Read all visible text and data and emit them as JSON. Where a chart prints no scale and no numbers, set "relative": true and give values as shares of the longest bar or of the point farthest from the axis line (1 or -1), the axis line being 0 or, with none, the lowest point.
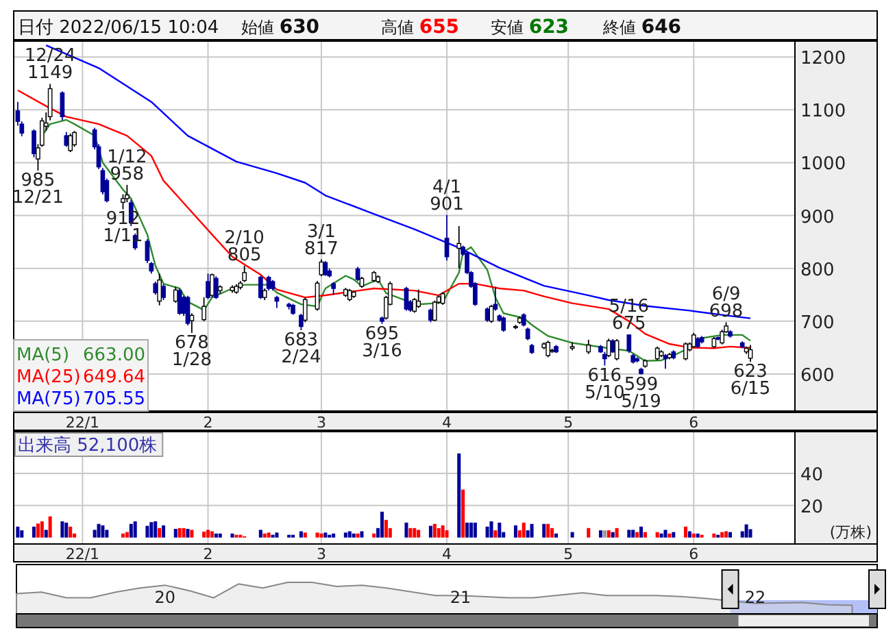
{
  "chart_data": [
    {
      "type": "candlestick",
      "title": "日付 2022/06/15 10:04",
      "x": [
        "2021-12-16",
        "2021-12-17",
        "2021-12-20",
        "2021-12-21",
        "2021-12-22",
        "2021-12-23",
        "2021-12-24",
        "2021-12-27",
        "2021-12-28",
        "2021-12-29",
        "2021-12-30",
        "2022-01-04",
        "2022-01-05",
        "2022-01-06",
        "2022-01-07",
        "2022-01-11",
        "2022-01-12",
        "2022-01-13",
        "2022-01-14",
        "2022-01-17",
        "2022-01-18",
        "2022-01-19",
        "2022-01-20",
        "2022-01-21",
        "2022-01-24",
        "2022-01-25",
        "2022-01-26",
        "2022-01-27",
        "2022-01-28",
        "2022-01-31",
        "2022-02-01",
        "2022-02-02",
        "2022-02-03",
        "2022-02-04",
        "2022-02-07",
        "2022-02-08",
        "2022-02-09",
        "2022-02-10",
        "2022-02-14",
        "2022-02-15",
        "2022-02-16",
        "2022-02-17",
        "2022-02-18",
        "2022-02-21",
        "2022-02-22",
        "2022-02-24",
        "2022-02-25",
        "2022-02-28",
        "2022-03-01",
        "2022-03-02",
        "2022-03-03",
        "2022-03-04",
        "2022-03-07",
        "2022-03-08",
        "2022-03-09",
        "2022-03-10",
        "2022-03-11",
        "2022-03-14",
        "2022-03-15",
        "2022-03-16",
        "2022-03-17",
        "2022-03-18",
        "2022-03-22",
        "2022-03-23",
        "2022-03-24",
        "2022-03-25",
        "2022-03-28",
        "2022-03-29",
        "2022-03-30",
        "2022-03-31",
        "2022-04-01",
        "2022-04-04",
        "2022-04-05",
        "2022-04-06",
        "2022-04-07",
        "2022-04-08",
        "2022-04-11",
        "2022-04-12",
        "2022-04-13",
        "2022-04-14",
        "2022-04-15",
        "2022-04-18",
        "2022-04-19",
        "2022-04-20",
        "2022-04-21",
        "2022-04-22",
        "2022-04-25",
        "2022-04-26",
        "2022-04-27",
        "2022-04-28",
        "2022-05-02",
        "2022-05-06",
        "2022-05-09",
        "2022-05-10",
        "2022-05-11",
        "2022-05-12",
        "2022-05-13",
        "2022-05-16",
        "2022-05-17",
        "2022-05-18",
        "2022-05-19",
        "2022-05-20",
        "2022-05-23",
        "2022-05-24",
        "2022-05-25",
        "2022-05-26",
        "2022-05-27",
        "2022-05-30",
        "2022-05-31",
        "2022-06-01",
        "2022-06-02",
        "2022-06-03",
        "2022-06-06",
        "2022-06-07",
        "2022-06-08",
        "2022-06-09",
        "2022-06-10",
        "2022-06-13",
        "2022-06-14",
        "2022-06-15"
      ],
      "ohlc": [
        [
          1098,
          1115,
          1070,
          1078
        ],
        [
          1073,
          1078,
          1050,
          1056
        ],
        [
          1060,
          1063,
          1010,
          1017
        ],
        [
          1007,
          1035,
          985,
          1028
        ],
        [
          1033,
          1085,
          1030,
          1079
        ],
        [
          1069,
          1095,
          1060,
          1075
        ],
        [
          1087,
          1149,
          1080,
          1140
        ],
        [
          1132,
          1135,
          1080,
          1087
        ],
        [
          1051,
          1058,
          1030,
          1033
        ],
        [
          1023,
          1055,
          1020,
          1051
        ],
        [
          1034,
          1060,
          1030,
          1057
        ],
        [
          1062,
          1066,
          1025,
          1030
        ],
        [
          1030,
          1035,
          988,
          992
        ],
        [
          985,
          990,
          940,
          945
        ],
        [
          966,
          970,
          925,
          928
        ],
        [
          925,
          940,
          912,
          932
        ],
        [
          932,
          958,
          925,
          939
        ],
        [
          924,
          930,
          880,
          886
        ],
        [
          862,
          866,
          835,
          839
        ],
        [
          851,
          855,
          810,
          815
        ],
        [
          809,
          812,
          790,
          795
        ],
        [
          771,
          775,
          750,
          754
        ],
        [
          738,
          790,
          730,
          778
        ],
        [
          766,
          770,
          740,
          745
        ],
        [
          738,
          765,
          735,
          759
        ],
        [
          758,
          762,
          712,
          715
        ],
        [
          745,
          748,
          710,
          715
        ],
        [
          745,
          748,
          692,
          696
        ],
        [
          701,
          715,
          678,
          711
        ],
        [
          703,
          745,
          700,
          728
        ],
        [
          775,
          790,
          742,
          745
        ],
        [
          749,
          790,
          745,
          788
        ],
        [
          781,
          785,
          742,
          745
        ],
        [
          758,
          768,
          752,
          765
        ],
        [
          758,
          768,
          754,
          764
        ],
        [
          755,
          770,
          752,
          766
        ],
        [
          764,
          776,
          760,
          772
        ],
        [
          777,
          805,
          774,
          792
        ],
        [
          783,
          786,
          742,
          745
        ],
        [
          745,
          762,
          740,
          758
        ],
        [
          783,
          786,
          758,
          762
        ],
        [
          775,
          778,
          758,
          762
        ],
        [
          745,
          748,
          725,
          738
        ],
        [
          732,
          735,
          722,
          728
        ],
        [
          730,
          733,
          712,
          715
        ],
        [
          711,
          714,
          683,
          690
        ],
        [
          702,
          745,
          698,
          741
        ],
        [
          723,
          776,
          720,
          772
        ],
        [
          788,
          817,
          785,
          812
        ],
        [
          811,
          814,
          786,
          788
        ],
        [
          795,
          800,
          783,
          786
        ],
        [
          771,
          774,
          750,
          762
        ],
        [
          749,
          763,
          746,
          760
        ],
        [
          741,
          761,
          738,
          758
        ],
        [
          747,
          758,
          744,
          755
        ],
        [
          799,
          803,
          776,
          779
        ],
        [
          766,
          784,
          763,
          781
        ],
        [
          777,
          795,
          774,
          792
        ],
        [
          775,
          787,
          772,
          784
        ],
        [
          706,
          709,
          695,
          700
        ],
        [
          706,
          748,
          703,
          745
        ],
        [
          732,
          775,
          730,
          771
        ],
        [
          762,
          765,
          720,
          723
        ],
        [
          736,
          740,
          718,
          721
        ],
        [
          719,
          744,
          716,
          741
        ],
        [
          728,
          760,
          725,
          738
        ],
        [
          721,
          724,
          698,
          702
        ],
        [
          702,
          739,
          700,
          736
        ],
        [
          736,
          749,
          733,
          746
        ],
        [
          734,
          755,
          731,
          752
        ],
        [
          857,
          901,
          815,
          822
        ],
        [
          838,
          880,
          800,
          847
        ],
        [
          840,
          843,
          824,
          827
        ],
        [
          829,
          832,
          789,
          792
        ],
        [
          792,
          795,
          763,
          766
        ],
        [
          771,
          774,
          729,
          732
        ],
        [
          723,
          726,
          699,
          702
        ],
        [
          700,
          731,
          697,
          728
        ],
        [
          732,
          765,
          720,
          723
        ],
        [
          710,
          713,
          699,
          702
        ],
        [
          706,
          709,
          680,
          683
        ],
        [
          688,
          693,
          685,
          690
        ],
        [
          698,
          709,
          695,
          706
        ],
        [
          712,
          715,
          690,
          693
        ],
        [
          685,
          688,
          664,
          667
        ],
        [
          654,
          657,
          638,
          641
        ],
        [
          650,
          660,
          647,
          657
        ],
        [
          635,
          663,
          632,
          660
        ],
        [
          643,
          648,
          640,
          645
        ],
        [
          652,
          655,
          640,
          642
        ],
        [
          649,
          660,
          645,
          652
        ],
        [
          642,
          665,
          638,
          655
        ],
        [
          652,
          655,
          640,
          642
        ],
        [
          637,
          642,
          616,
          629
        ],
        [
          635,
          667,
          632,
          663
        ],
        [
          663,
          666,
          640,
          642
        ],
        [
          629,
          666,
          626,
          663
        ],
        [
          674,
          675,
          640,
          644
        ],
        [
          635,
          638,
          620,
          623
        ],
        [
          629,
          632,
          622,
          625
        ],
        [
          609,
          612,
          599,
          601
        ],
        [
          615,
          628,
          612,
          625
        ],
        [
          629,
          652,
          626,
          649
        ],
        [
          635,
          645,
          632,
          642
        ],
        [
          635,
          638,
          610,
          629
        ],
        [
          631,
          640,
          628,
          637
        ],
        [
          642,
          645,
          628,
          631
        ],
        [
          629,
          660,
          626,
          657
        ],
        [
          646,
          660,
          643,
          657
        ],
        [
          652,
          678,
          650,
          674
        ],
        [
          667,
          670,
          649,
          652
        ],
        [
          669,
          672,
          658,
          661
        ],
        [
          652,
          670,
          649,
          667
        ],
        [
          669,
          671,
          664,
          666
        ],
        [
          659,
          684,
          656,
          680
        ],
        [
          680,
          698,
          678,
          691
        ],
        [
          680,
          683,
          669,
          672
        ],
        [
          659,
          662,
          649,
          652
        ],
        [
          642,
          652,
          638,
          649
        ],
        [
          630,
          655,
          623,
          646
        ]
      ],
      "series": [
        {
          "type": "line",
          "name": "MA(5)",
          "color": "#2e8b2e",
          "x": [
            "2021-12-22",
            "2021-12-24",
            "2021-12-28",
            "2021-12-30",
            "2022-01-04",
            "2022-01-06",
            "2022-01-11",
            "2022-01-13",
            "2022-01-17",
            "2022-01-19",
            "2022-01-21",
            "2022-01-25",
            "2022-01-27",
            "2022-01-31",
            "2022-02-02",
            "2022-02-07",
            "2022-02-10",
            "2022-02-16",
            "2022-02-18",
            "2022-02-24",
            "2022-02-28",
            "2022-03-02",
            "2022-03-07",
            "2022-03-09",
            "2022-03-11",
            "2022-03-15",
            "2022-03-17",
            "2022-03-23",
            "2022-03-25",
            "2022-03-29",
            "2022-03-31",
            "2022-04-04",
            "2022-04-05",
            "2022-04-07",
            "2022-04-11",
            "2022-04-13",
            "2022-04-15",
            "2022-04-20",
            "2022-04-22",
            "2022-04-26",
            "2022-05-02",
            "2022-05-11",
            "2022-05-16",
            "2022-05-20",
            "2022-05-24",
            "2022-05-27",
            "2022-05-31",
            "2022-06-03",
            "2022-06-08",
            "2022-06-13",
            "2022-06-15"
          ],
          "values": [
            1051,
            1073,
            1081,
            1073,
            1051,
            1000,
            949,
            932,
            864,
            805,
            771,
            762,
            737,
            721,
            745,
            762,
            769,
            769,
            754,
            732,
            728,
            762,
            786,
            779,
            766,
            779,
            753,
            736,
            732,
            734,
            736,
            792,
            831,
            840,
            797,
            745,
            715,
            706,
            693,
            672,
            659,
            649,
            644,
            625,
            626,
            635,
            650,
            668,
            674,
            674,
            663.0
          ]
        },
        {
          "type": "line",
          "name": "MA(25)",
          "color": "#ff0000",
          "x": [
            "2021-12-16",
            "2021-12-23",
            "2021-12-28",
            "2022-01-05",
            "2022-01-12",
            "2022-01-18",
            "2022-01-21",
            "2022-01-27",
            "2022-02-02",
            "2022-02-07",
            "2022-02-14",
            "2022-02-18",
            "2022-02-25",
            "2022-03-02",
            "2022-03-14",
            "2022-03-24",
            "2022-03-30",
            "2022-04-04",
            "2022-04-08",
            "2022-04-14",
            "2022-04-20",
            "2022-04-25",
            "2022-05-02",
            "2022-05-11",
            "2022-05-16",
            "2022-05-20",
            "2022-05-26",
            "2022-05-31",
            "2022-06-06",
            "2022-06-10",
            "2022-06-15"
          ],
          "values": [
            1137,
            1107,
            1087,
            1073,
            1051,
            1013,
            966,
            915,
            864,
            822,
            788,
            760,
            745,
            749,
            762,
            758,
            749,
            771,
            771,
            762,
            758,
            747,
            734,
            723,
            700,
            676,
            657,
            650,
            649,
            652,
            649.64
          ]
        },
        {
          "type": "line",
          "name": "MA(75)",
          "color": "#0000ff",
          "x": [
            "2021-12-23",
            "2022-01-05",
            "2022-01-18",
            "2022-01-27",
            "2022-02-08",
            "2022-02-18",
            "2022-02-25",
            "2022-03-02",
            "2022-03-14",
            "2022-03-24",
            "2022-04-04",
            "2022-04-14",
            "2022-04-25",
            "2022-05-06",
            "2022-05-11",
            "2022-05-20",
            "2022-05-31",
            "2022-06-10",
            "2022-06-15"
          ],
          "values": [
            1222,
            1179,
            1115,
            1051,
            1002,
            980,
            962,
            938,
            903,
            874,
            839,
            801,
            767,
            749,
            740,
            729,
            720,
            710,
            705.55
          ]
        }
      ],
      "ylim": [
        530,
        1230
      ],
      "yticks": [
        600,
        700,
        800,
        900,
        1000,
        1100,
        1200
      ],
      "xlim": [
        "2021-12-15",
        "2022-06-26"
      ],
      "xticks": [
        {
          "value": "2022-01",
          "label": "22/1"
        },
        {
          "value": "2022-02",
          "label": "2"
        },
        {
          "value": "2022-03",
          "label": "3"
        },
        {
          "value": "2022-04",
          "label": "4"
        },
        {
          "value": "2022-05",
          "label": "5"
        },
        {
          "value": "2022-06",
          "label": "6"
        }
      ],
      "grid": true,
      "legend": "bottom left",
      "annotations": [
        "始値 **630**",
        "高値 **655**",
        "安値 **623**",
        "終値 **646**",
        "663.00",
        "649.64",
        "705.55",
        {
          "text": "12/24",
          "x": "2021-12-24",
          "y": 1149
        },
        {
          "text": "1149",
          "x": "2021-12-24",
          "y": 1149
        },
        {
          "text": "985",
          "x": "2021-12-21",
          "y": 985
        },
        {
          "text": "12/21",
          "x": "2021-12-21",
          "y": 985
        },
        {
          "text": "1/12",
          "x": "2022-01-12",
          "y": 958
        },
        {
          "text": "958",
          "x": "2022-01-12",
          "y": 958
        },
        {
          "text": "912",
          "x": "2022-01-11",
          "y": 912
        },
        {
          "text": "1/11",
          "x": "2022-01-11",
          "y": 912
        },
        {
          "text": "678",
          "x": "2022-01-28",
          "y": 678
        },
        {
          "text": "1/28",
          "x": "2022-01-28",
          "y": 678
        },
        {
          "text": "2/10",
          "x": "2022-02-10",
          "y": 805
        },
        {
          "text": "805",
          "x": "2022-02-10",
          "y": 805
        },
        {
          "text": "683",
          "x": "2022-02-24",
          "y": 683
        },
        {
          "text": "2/24",
          "x": "2022-02-24",
          "y": 683
        },
        {
          "text": "3/1",
          "x": "2022-03-01",
          "y": 817
        },
        {
          "text": "817",
          "x": "2022-03-01",
          "y": 817
        },
        {
          "text": "695",
          "x": "2022-03-16",
          "y": 695
        },
        {
          "text": "3/16",
          "x": "2022-03-16",
          "y": 695
        },
        {
          "text": "4/1",
          "x": "2022-04-01",
          "y": 901
        },
        {
          "text": "901",
          "x": "2022-04-01",
          "y": 901
        },
        {
          "text": "616",
          "x": "2022-05-10",
          "y": 616
        },
        {
          "text": "5/10",
          "x": "2022-05-10",
          "y": 616
        },
        {
          "text": "5/16",
          "x": "2022-05-16",
          "y": 675
        },
        {
          "text": "675",
          "x": "2022-05-16",
          "y": 675
        },
        {
          "text": "599",
          "x": "2022-05-19",
          "y": 599
        },
        {
          "text": "5/19",
          "x": "2022-05-19",
          "y": 599
        },
        {
          "text": "6/9",
          "x": "2022-06-09",
          "y": 698
        },
        {
          "text": "698",
          "x": "2022-06-09",
          "y": 698
        },
        {
          "text": "623",
          "x": "2022-06-15",
          "y": 623
        },
        {
          "text": "6/15",
          "x": "2022-06-15",
          "y": 623
        }
      ]
    },
    {
      "type": "bar",
      "title": "出来高 52,100株",
      "ylabel": "(万株)",
      "x": [
        "2021-12-16",
        "2021-12-17",
        "2021-12-20",
        "2021-12-21",
        "2021-12-22",
        "2021-12-23",
        "2021-12-24",
        "2021-12-27",
        "2021-12-28",
        "2021-12-29",
        "2021-12-30",
        "2022-01-04",
        "2022-01-05",
        "2022-01-06",
        "2022-01-07",
        "2022-01-11",
        "2022-01-12",
        "2022-01-13",
        "2022-01-14",
        "2022-01-17",
        "2022-01-18",
        "2022-01-19",
        "2022-01-20",
        "2022-01-21",
        "2022-01-24",
        "2022-01-25",
        "2022-01-26",
        "2022-01-27",
        "2022-01-28",
        "2022-01-31",
        "2022-02-01",
        "2022-02-02",
        "2022-02-03",
        "2022-02-04",
        "2022-02-07",
        "2022-02-08",
        "2022-02-09",
        "2022-02-10",
        "2022-02-14",
        "2022-02-15",
        "2022-02-16",
        "2022-02-17",
        "2022-02-18",
        "2022-02-21",
        "2022-02-22",
        "2022-02-24",
        "2022-02-25",
        "2022-02-28",
        "2022-03-01",
        "2022-03-02",
        "2022-03-03",
        "2022-03-04",
        "2022-03-07",
        "2022-03-08",
        "2022-03-09",
        "2022-03-10",
        "2022-03-11",
        "2022-03-14",
        "2022-03-15",
        "2022-03-16",
        "2022-03-17",
        "2022-03-18",
        "2022-03-22",
        "2022-03-23",
        "2022-03-24",
        "2022-03-25",
        "2022-03-28",
        "2022-03-29",
        "2022-03-30",
        "2022-03-31",
        "2022-04-01",
        "2022-04-04",
        "2022-04-05",
        "2022-04-06",
        "2022-04-07",
        "2022-04-08",
        "2022-04-11",
        "2022-04-12",
        "2022-04-13",
        "2022-04-14",
        "2022-04-15",
        "2022-04-18",
        "2022-04-19",
        "2022-04-20",
        "2022-04-21",
        "2022-04-22",
        "2022-04-25",
        "2022-04-26",
        "2022-04-27",
        "2022-04-28",
        "2022-05-02",
        "2022-05-06",
        "2022-05-09",
        "2022-05-10",
        "2022-05-11",
        "2022-05-12",
        "2022-05-13",
        "2022-05-16",
        "2022-05-17",
        "2022-05-18",
        "2022-05-19",
        "2022-05-20",
        "2022-05-23",
        "2022-05-24",
        "2022-05-25",
        "2022-05-26",
        "2022-05-27",
        "2022-05-30",
        "2022-05-31",
        "2022-06-01",
        "2022-06-02",
        "2022-06-03",
        "2022-06-06",
        "2022-06-07",
        "2022-06-08",
        "2022-06-09",
        "2022-06-10",
        "2022-06-13",
        "2022-06-14",
        "2022-06-15"
      ],
      "values": [
        6.8,
        4.5,
        6.8,
        8.7,
        10.1,
        4.8,
        13.2,
        10.1,
        9.3,
        6.8,
        2.5,
        4.8,
        8.5,
        7.6,
        4.8,
        2.5,
        3.4,
        8.5,
        10.1,
        7.3,
        9.6,
        10.1,
        5.9,
        7.6,
        5.4,
        5.9,
        5.9,
        5.4,
        4.8,
        3.7,
        4.8,
        3.9,
        2.5,
        2.5,
        2.5,
        1.7,
        1.7,
        0.8,
        4.8,
        2.5,
        3.1,
        1.7,
        3.1,
        1.7,
        1.7,
        3.9,
        3.1,
        3.1,
        2.5,
        3.1,
        1.7,
        2.5,
        3.1,
        3.9,
        2.5,
        2.5,
        3.9,
        2.5,
        5.9,
        16.1,
        11.0,
        5.9,
        9.3,
        5.9,
        5.9,
        4.8,
        7.3,
        8.5,
        5.9,
        7.6,
        4.5,
        52.4,
        29.9,
        9.3,
        9.3,
        9.3,
        6.8,
        10.1,
        4.5,
        9.3,
        3.4,
        7.6,
        4.5,
        9.3,
        4.5,
        8.5,
        8.5,
        8.5,
        5.9,
        2.5,
        3.4,
        5.9,
        4.5,
        4.5,
        4.5,
        3.4,
        5.9,
        4.8,
        4.8,
        3.4,
        6.8,
        3.4,
        3.4,
        2.5,
        4.8,
        2.5,
        3.4,
        6.8,
        3.9,
        2.5,
        2.5,
        1.7,
        2.5,
        1.7,
        3.4,
        3.9,
        3.4,
        3.9,
        8.2,
        5.21
      ],
      "colors": [
        "#000099",
        "#000099",
        "#000099",
        "#ff0000",
        "#ff0000",
        "#000099",
        "#ff0000",
        "#000099",
        "#000099",
        "#ff0000",
        "#ff0000",
        "#000099",
        "#000099",
        "#000099",
        "#000099",
        "#ff0000",
        "#ff0000",
        "#000099",
        "#000099",
        "#000099",
        "#000099",
        "#000099",
        "#ff0000",
        "#000099",
        "#000099",
        "#ff0000",
        "#ff0000",
        "#000099",
        "#ff0000",
        "#ff0000",
        "#ff0000",
        "#ff0000",
        "#000099",
        "#000099",
        "#000099",
        "#ff0000",
        "#ff0000",
        "#ff0000",
        "#000099",
        "#ff0000",
        "#ff0000",
        "#000099",
        "#000099",
        "#000099",
        "#000099",
        "#000099",
        "#ff0000",
        "#ff0000",
        "#ff0000",
        "#000099",
        "#000099",
        "#000099",
        "#000099",
        "#000099",
        "#000099",
        "#ff0000",
        "#000099",
        "#ff0000",
        "#000099",
        "#000099",
        "#ff0000",
        "#ff0000",
        "#000099",
        "#ff0000",
        "#ff0000",
        "#ff0000",
        "#000099",
        "#ff0000",
        "#ff0000",
        "#ff0000",
        "#ff0000",
        "#000099",
        "#ff0000",
        "#000099",
        "#000099",
        "#000099",
        "#000099",
        "#000099",
        "#ff0000",
        "#000099",
        "#000099",
        "#000099",
        "#ff0000",
        "#ff0000",
        "#000099",
        "#000099",
        "#000099",
        "#ff0000",
        "#ff0000",
        "#000099",
        "#000099",
        "#ff0000",
        "#000099",
        "#999999",
        "#ff0000",
        "#000099",
        "#ff0000",
        "#000099",
        "#000099",
        "#ff0000",
        "#000099",
        "#ff0000",
        "#ff0000",
        "#000099",
        "#000099",
        "#ff0000",
        "#000099",
        "#ff0000",
        "#000099",
        "#ff0000",
        "#000099",
        "#ff0000",
        "#ff0000",
        "#000099",
        "#ff0000",
        "#ff0000",
        "#000099",
        "#000099",
        "#000099",
        "#000099"
      ],
      "ylim": [
        -4,
        66
      ],
      "yticks": [
        20,
        40
      ],
      "xlim": [
        "2021-12-15",
        "2022-06-26"
      ],
      "xticks": [
        {
          "value": "2022-01",
          "label": "22/1"
        },
        {
          "value": "2022-02",
          "label": "2"
        },
        {
          "value": "2022-03",
          "label": "3"
        },
        {
          "value": "2022-04",
          "label": "4"
        },
        {
          "value": "2022-05",
          "label": "5"
        },
        {
          "value": "2022-06",
          "label": "6"
        }
      ],
      "grid": true
    },
    {
      "type": "area",
      "relative": true,
      "color": "#888888",
      "x": [
        "2019-07",
        "2019-08",
        "2019-09",
        "2019-10",
        "2019-11",
        "2019-12",
        "2020-01",
        "2020-02",
        "2020-03",
        "2020-04",
        "2020-05",
        "2020-06",
        "2020-07",
        "2020-08",
        "2020-09",
        "2020-10",
        "2020-12",
        "2021-01",
        "2021-03",
        "2021-04",
        "2021-06",
        "2021-07",
        "2021-09",
        "2021-10",
        "2021-11",
        "2022-01",
        "2022-03",
        "2022-04",
        "2022-05"
      ],
      "values": [
        0.64,
        0.69,
        0.51,
        0.51,
        0.69,
        0.82,
        0.91,
        0.73,
        0.51,
        0.95,
        0.82,
        1.0,
        1.0,
        0.87,
        0.91,
        0.82,
        0.58,
        0.58,
        0.51,
        0.51,
        0.67,
        0.58,
        0.58,
        0.55,
        0.49,
        0.33,
        0.36,
        0.29,
        0.27
      ],
      "xlim": [
        "2019-07",
        "2022-06"
      ],
      "xticks": [
        {
          "value": "2020-01",
          "label": "20"
        },
        {
          "value": "2021-01",
          "label": "21"
        },
        {
          "value": "2022-01",
          "label": "22"
        }
      ],
      "bands": [
        {
          "axis": "x",
          "from": "2021-12",
          "to": "2022-06",
          "color": "#b4c0f8"
        }
      ]
    }
  ]
}
